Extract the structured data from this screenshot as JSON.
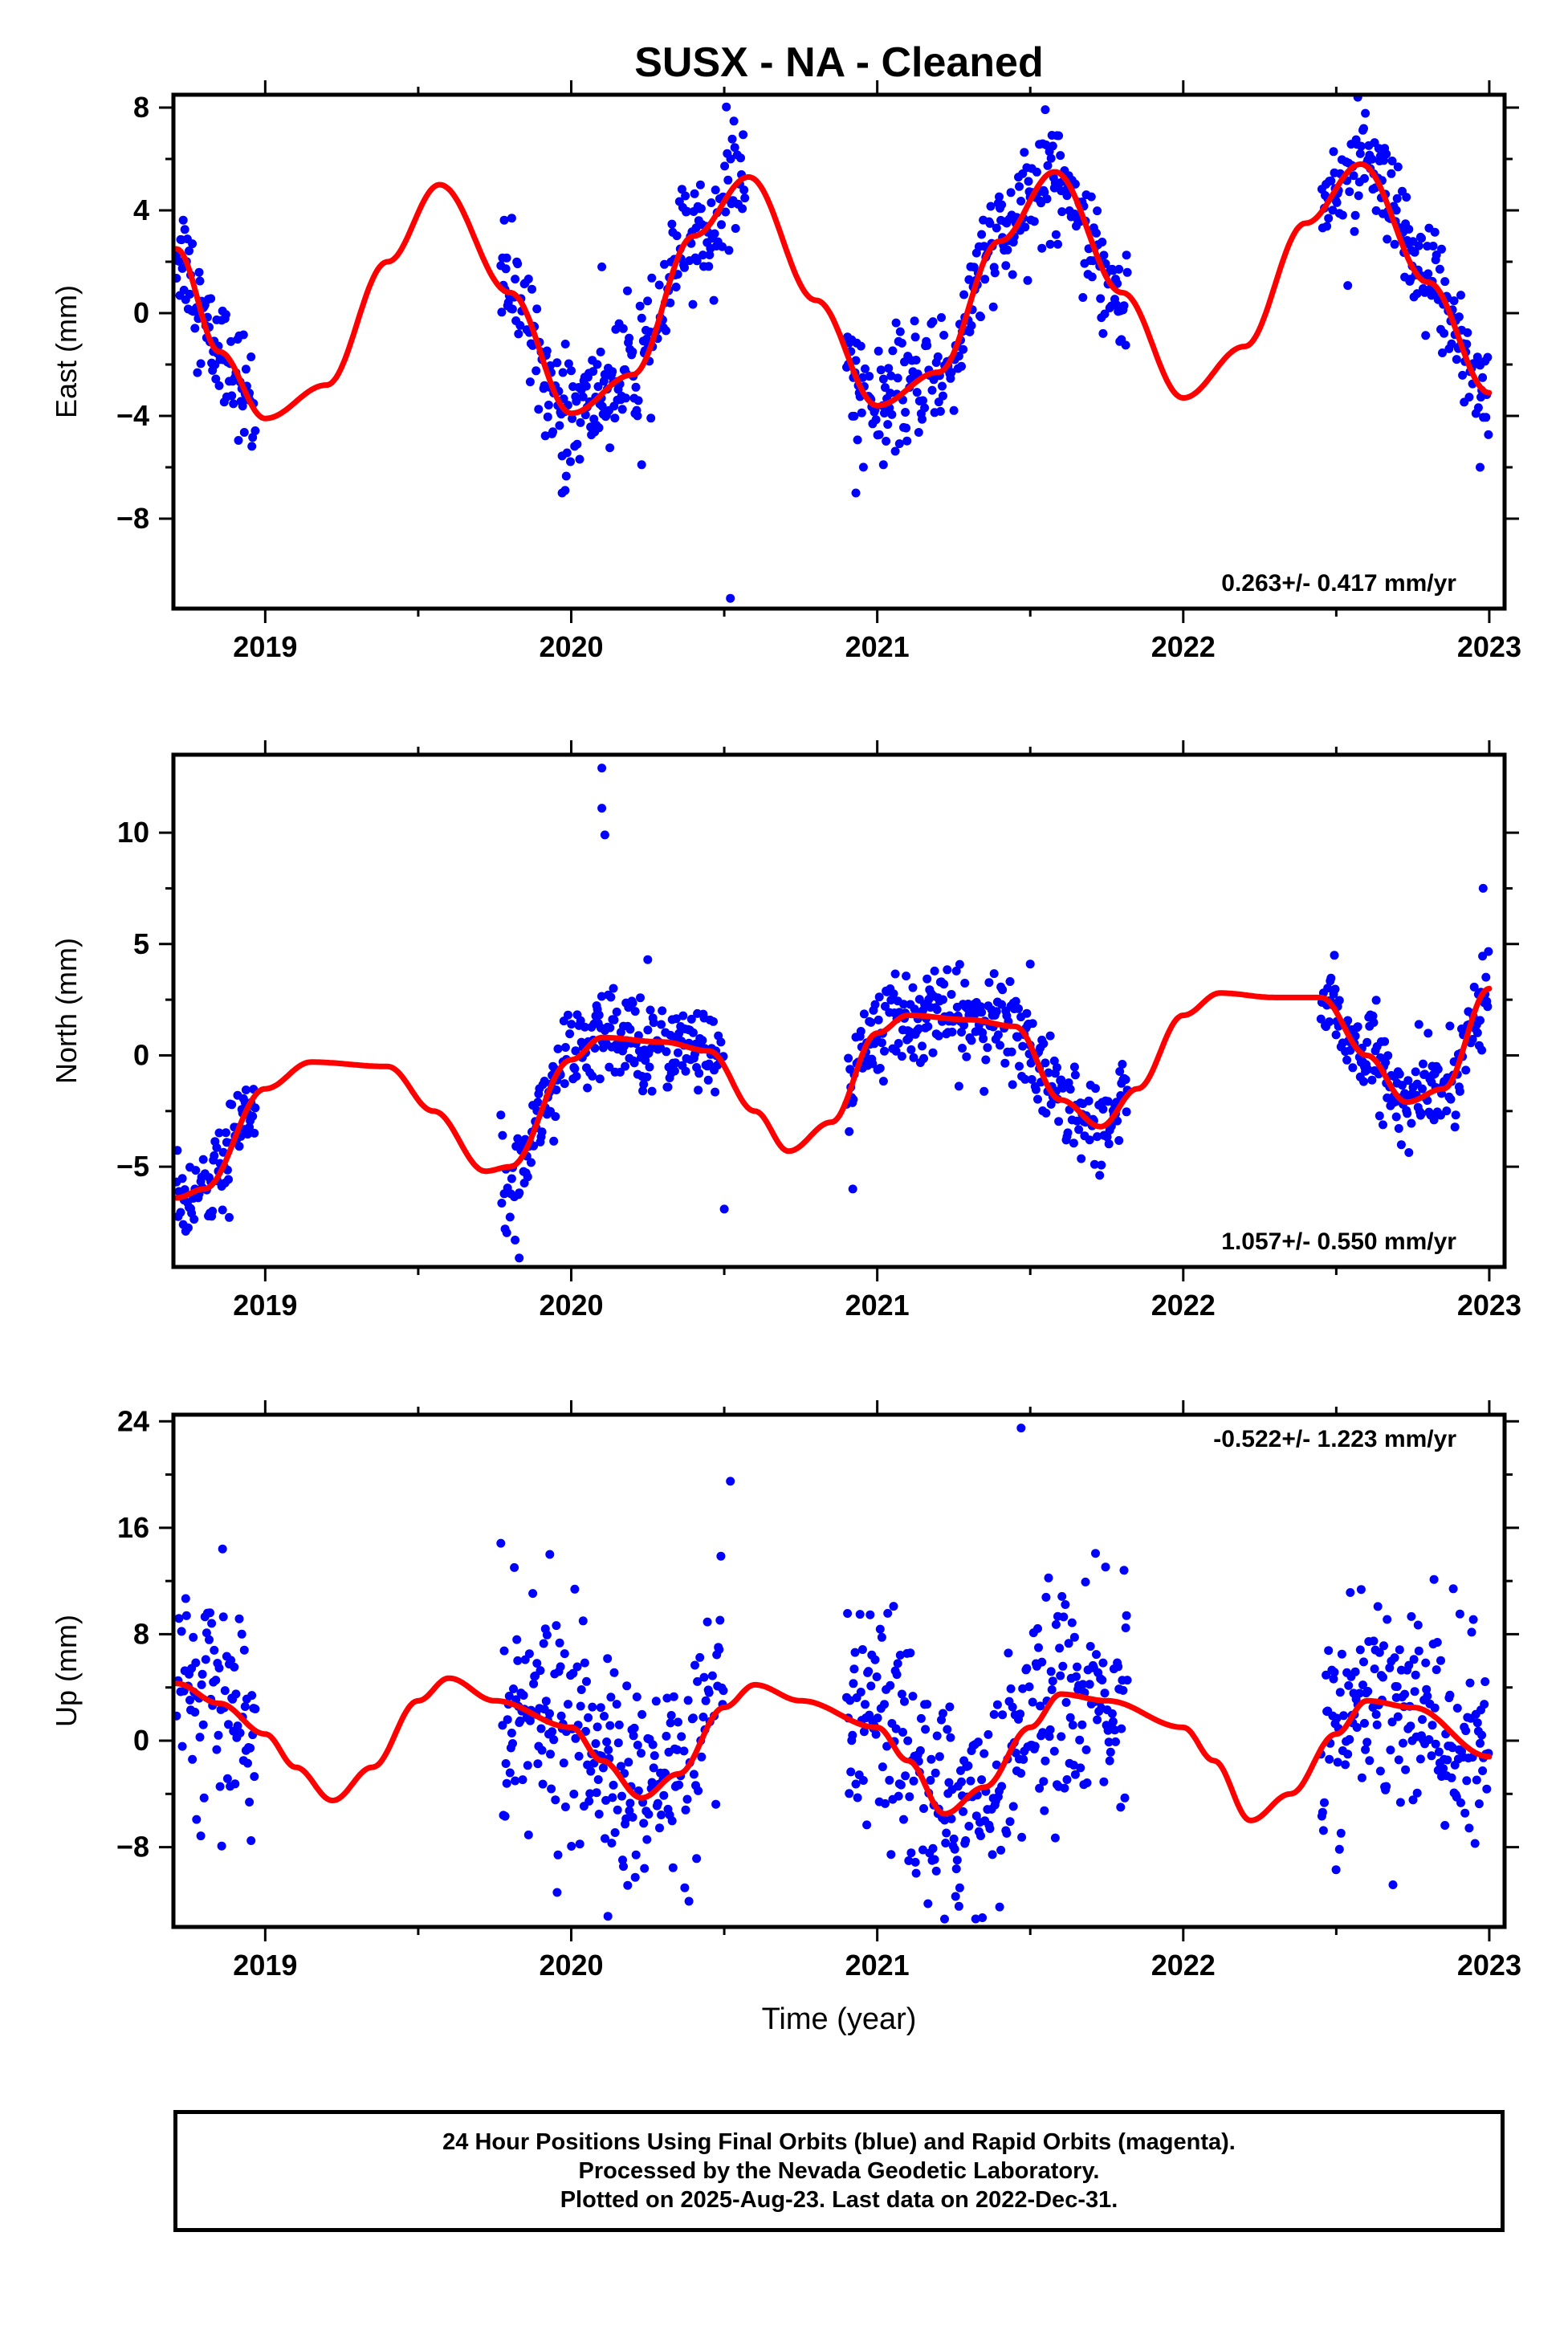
{
  "title": "SUSX  - NA - Cleaned",
  "colors": {
    "final_orbits": "#0000ff",
    "model_fit": "#ff0000",
    "axes": "#000000"
  },
  "chart_data": [
    {
      "type": "scatter",
      "ylabel": "East (mm)",
      "xlabel": "",
      "xlim": [
        2018.7,
        2023.05
      ],
      "ylim": [
        -11.5,
        8.5
      ],
      "xticks": [
        2019,
        2020,
        2021,
        2022,
        2023
      ],
      "xtick_labels": [
        "2019",
        "2020",
        "2021",
        "2022",
        "2023"
      ],
      "yticks": [
        -8,
        -4,
        0,
        4,
        8
      ],
      "ytick_labels": [
        "−8",
        "−4",
        "0",
        "4",
        "8"
      ],
      "rate_text": "0.263+/- 0.417 mm/yr",
      "rate_position": "bottom-right",
      "grid": false,
      "model": {
        "x": [
          2018.71,
          2018.85,
          2019.0,
          2019.2,
          2019.4,
          2019.57,
          2019.8,
          2020.0,
          2020.2,
          2020.4,
          2020.58,
          2020.8,
          2021.0,
          2021.2,
          2021.4,
          2021.58,
          2021.8,
          2022.0,
          2022.2,
          2022.4,
          2022.58,
          2022.8,
          2023.0
        ],
        "y": [
          2.5,
          -1.5,
          -4.1,
          -2.8,
          2.0,
          5.0,
          0.8,
          -3.9,
          -2.4,
          3.0,
          5.3,
          0.5,
          -3.6,
          -2.3,
          2.8,
          5.5,
          0.8,
          -3.3,
          -1.3,
          3.5,
          5.8,
          1.2,
          -3.1
        ]
      },
      "observations": {
        "segments": [
          {
            "start": 2018.71,
            "end": 2018.97
          },
          {
            "start": 2019.77,
            "end": 2020.57
          },
          {
            "start": 2020.9,
            "end": 2021.82
          },
          {
            "start": 2022.45,
            "end": 2023.0
          }
        ],
        "scatter_mm": 1.1,
        "outliers": [
          {
            "x": 2019.97,
            "y": -7.0
          },
          {
            "x": 2019.98,
            "y": -6.9
          },
          {
            "x": 2020.1,
            "y": 1.8
          },
          {
            "x": 2020.23,
            "y": -5.9
          },
          {
            "x": 2020.52,
            "y": -11.1
          },
          {
            "x": 2020.93,
            "y": -7.0
          },
          {
            "x": 2021.02,
            "y": -5.9
          },
          {
            "x": 2022.97,
            "y": -6.0
          }
        ]
      }
    },
    {
      "type": "scatter",
      "ylabel": "North (mm)",
      "xlabel": "",
      "xlim": [
        2018.7,
        2023.05
      ],
      "ylim": [
        -9.5,
        13.5
      ],
      "xticks": [
        2019,
        2020,
        2021,
        2022,
        2023
      ],
      "xtick_labels": [
        "2019",
        "2020",
        "2021",
        "2022",
        "2023"
      ],
      "yticks": [
        -5,
        0,
        5,
        10
      ],
      "ytick_labels": [
        "−5",
        "0",
        "5",
        "10"
      ],
      "rate_text": "1.057+/- 0.550 mm/yr",
      "rate_position": "bottom-right",
      "grid": false,
      "model": {
        "x": [
          2018.71,
          2018.8,
          2019.0,
          2019.15,
          2019.4,
          2019.55,
          2019.72,
          2019.8,
          2020.0,
          2020.1,
          2020.3,
          2020.45,
          2020.6,
          2020.71,
          2020.85,
          2021.0,
          2021.1,
          2021.3,
          2021.45,
          2021.6,
          2021.73,
          2021.85,
          2022.0,
          2022.12,
          2022.3,
          2022.45,
          2022.6,
          2022.73,
          2022.85,
          2023.0
        ],
        "y": [
          -6.4,
          -6.0,
          -1.5,
          -0.3,
          -0.5,
          -2.5,
          -5.2,
          -5.0,
          -0.2,
          0.8,
          0.6,
          0.2,
          -2.5,
          -4.3,
          -3.0,
          1.0,
          1.8,
          1.6,
          1.3,
          -2.0,
          -3.2,
          -1.5,
          1.8,
          2.8,
          2.6,
          2.6,
          0.0,
          -2.1,
          -1.5,
          3.0
        ]
      },
      "observations": {
        "segments": [
          {
            "start": 2018.71,
            "end": 2018.97
          },
          {
            "start": 2019.77,
            "end": 2020.5
          },
          {
            "start": 2020.9,
            "end": 2021.82
          },
          {
            "start": 2022.45,
            "end": 2023.0
          }
        ],
        "scatter_mm": 1.0,
        "outliers": [
          {
            "x": 2020.1,
            "y": 12.9
          },
          {
            "x": 2020.1,
            "y": 11.1
          },
          {
            "x": 2020.11,
            "y": 9.9
          },
          {
            "x": 2019.83,
            "y": -9.1
          },
          {
            "x": 2020.5,
            "y": -6.9
          },
          {
            "x": 2020.92,
            "y": -6.0
          },
          {
            "x": 2021.5,
            "y": 4.1
          },
          {
            "x": 2020.25,
            "y": 4.3
          },
          {
            "x": 2022.98,
            "y": 7.5
          }
        ]
      }
    },
    {
      "type": "scatter",
      "ylabel": "Up (mm)",
      "xlabel": "Time (year)",
      "xlim": [
        2018.7,
        2023.05
      ],
      "ylim": [
        -14,
        24.5
      ],
      "xticks": [
        2019,
        2020,
        2021,
        2022,
        2023
      ],
      "xtick_labels": [
        "2019",
        "2020",
        "2021",
        "2022",
        "2023"
      ],
      "yticks": [
        -8,
        0,
        8,
        16,
        24
      ],
      "ytick_labels": [
        "−8",
        "0",
        "8",
        "16",
        "24"
      ],
      "rate_text": "-0.522+/- 1.223 mm/yr",
      "rate_position": "top-right",
      "grid": false,
      "model": {
        "x": [
          2018.71,
          2018.85,
          2019.0,
          2019.1,
          2019.22,
          2019.35,
          2019.5,
          2019.6,
          2019.75,
          2020.0,
          2020.1,
          2020.23,
          2020.35,
          2020.5,
          2020.6,
          2020.75,
          2021.0,
          2021.1,
          2021.22,
          2021.35,
          2021.5,
          2021.6,
          2021.75,
          2022.0,
          2022.1,
          2022.22,
          2022.35,
          2022.5,
          2022.6,
          2022.75,
          2023.0
        ],
        "y": [
          4.3,
          2.8,
          0.5,
          -2.0,
          -4.5,
          -2.0,
          3.0,
          4.7,
          3.0,
          1.0,
          -1.5,
          -4.3,
          -2.5,
          2.5,
          4.2,
          3.0,
          1.0,
          -1.5,
          -5.5,
          -3.5,
          1.0,
          3.5,
          3.0,
          1.0,
          -1.5,
          -6.0,
          -4.0,
          0.5,
          3.0,
          2.5,
          -1.2
        ]
      },
      "observations": {
        "segments": [
          {
            "start": 2018.71,
            "end": 2018.97
          },
          {
            "start": 2019.77,
            "end": 2020.5
          },
          {
            "start": 2020.9,
            "end": 2021.82
          },
          {
            "start": 2022.45,
            "end": 2023.0
          }
        ],
        "scatter_mm": 4.0,
        "outliers": [
          {
            "x": 2021.47,
            "y": 23.5
          },
          {
            "x": 2020.52,
            "y": 19.5
          },
          {
            "x": 2019.93,
            "y": 14.0
          },
          {
            "x": 2021.4,
            "y": -12.5
          },
          {
            "x": 2020.12,
            "y": -13.2
          },
          {
            "x": 2021.22,
            "y": -13.4
          }
        ]
      }
    }
  ],
  "footer": {
    "line1": "24 Hour Positions Using Final Orbits (blue) and Rapid Orbits (magenta).",
    "line2": "Processed by the Nevada Geodetic Laboratory.",
    "line3": "Plotted on 2025-Aug-23. Last data on 2022-Dec-31."
  }
}
